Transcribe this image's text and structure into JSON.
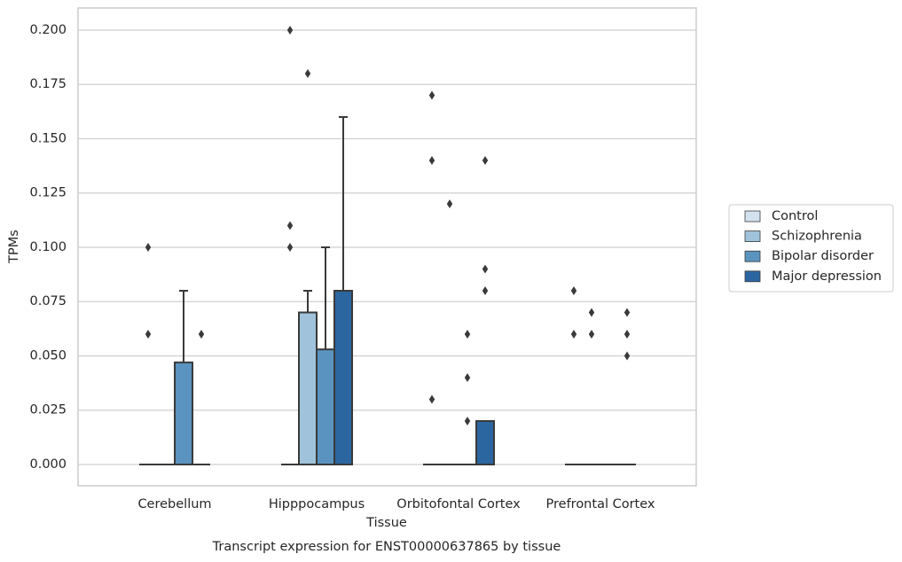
{
  "chart_data": {
    "type": "boxplot",
    "x_label": "Tissue",
    "y_label": "TPMs",
    "caption": "Transcript expression for ENST00000637865 by tissue",
    "categories": [
      "Cerebellum",
      "Hipppocampus",
      "Orbitofontal Cortex",
      "Prefrontal Cortex"
    ],
    "ylim": [
      -0.0098,
      0.2102
    ],
    "yticks": [
      {
        "value": 0,
        "label": "0.000"
      },
      {
        "value": 0.025,
        "label": "0.025"
      },
      {
        "value": 0.05,
        "label": "0.050"
      },
      {
        "value": 0.075,
        "label": "0.075"
      },
      {
        "value": 0.1,
        "label": "0.100"
      },
      {
        "value": 0.125,
        "label": "0.125"
      },
      {
        "value": 0.15,
        "label": "0.150"
      },
      {
        "value": 0.175,
        "label": "0.175"
      },
      {
        "value": 0.2,
        "label": "0.200"
      }
    ],
    "grid": true,
    "legend": "right",
    "series": [
      {
        "name": "Control",
        "color": "#d4e1ef",
        "boxes": [
          {
            "q1": 0,
            "median": 0,
            "q3": 0,
            "whislo": 0,
            "whishi": 0,
            "fliers": [
              0.1,
              0.06
            ]
          },
          {
            "q1": 0,
            "median": 0,
            "q3": 0,
            "whislo": 0,
            "whishi": 0,
            "fliers": [
              0.2,
              0.11,
              0.1
            ]
          },
          {
            "q1": 0,
            "median": 0,
            "q3": 0,
            "whislo": 0,
            "whishi": 0,
            "fliers": [
              0.17,
              0.14,
              0.03
            ]
          },
          {
            "q1": 0,
            "median": 0,
            "q3": 0,
            "whislo": 0,
            "whishi": 0,
            "fliers": [
              0.08,
              0.06
            ]
          }
        ]
      },
      {
        "name": "Schizophrenia",
        "color": "#a0c3db",
        "boxes": [
          {
            "q1": 0,
            "median": 0,
            "q3": 0,
            "whislo": 0,
            "whishi": 0,
            "fliers": []
          },
          {
            "q1": 0,
            "median": 0,
            "q3": 0.07,
            "whislo": 0,
            "whishi": 0.08,
            "fliers": [
              0.18
            ]
          },
          {
            "q1": 0,
            "median": 0,
            "q3": 0,
            "whislo": 0,
            "whishi": 0,
            "fliers": [
              0.12
            ]
          },
          {
            "q1": 0,
            "median": 0,
            "q3": 0,
            "whislo": 0,
            "whishi": 0,
            "fliers": [
              0.07,
              0.06
            ]
          }
        ]
      },
      {
        "name": "Bipolar disorder",
        "color": "#5a93bf",
        "boxes": [
          {
            "q1": 0,
            "median": 0,
            "q3": 0.047,
            "whislo": 0,
            "whishi": 0.08,
            "fliers": []
          },
          {
            "q1": 0,
            "median": 0,
            "q3": 0.053,
            "whislo": 0,
            "whishi": 0.1,
            "fliers": []
          },
          {
            "q1": 0,
            "median": 0,
            "q3": 0,
            "whislo": 0,
            "whishi": 0,
            "fliers": [
              0.06,
              0.04,
              0.02
            ]
          },
          {
            "q1": 0,
            "median": 0,
            "q3": 0,
            "whislo": 0,
            "whishi": 0,
            "fliers": []
          }
        ]
      },
      {
        "name": "Major depression",
        "color": "#2b66a1",
        "boxes": [
          {
            "q1": 0,
            "median": 0,
            "q3": 0,
            "whislo": 0,
            "whishi": 0,
            "fliers": [
              0.06
            ]
          },
          {
            "q1": 0,
            "median": 0,
            "q3": 0.08,
            "whislo": 0,
            "whishi": 0.16,
            "fliers": []
          },
          {
            "q1": 0,
            "median": 0,
            "q3": 0.02,
            "whislo": 0,
            "whishi": 0.02,
            "fliers": [
              0.14,
              0.09,
              0.08
            ]
          },
          {
            "q1": 0,
            "median": 0,
            "q3": 0,
            "whislo": 0,
            "whishi": 0,
            "fliers": [
              0.07,
              0.06,
              0.05
            ]
          }
        ]
      }
    ]
  }
}
